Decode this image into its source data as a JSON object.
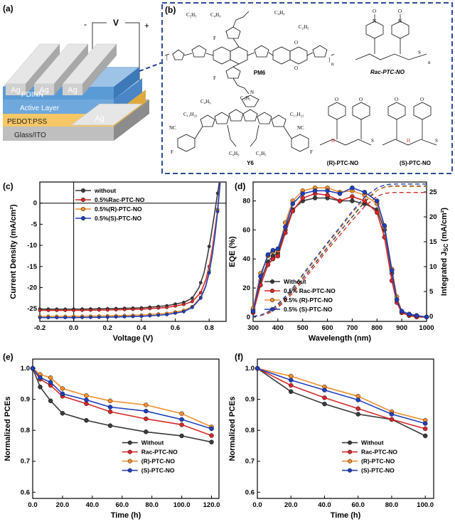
{
  "panel_labels": {
    "a": "(a)",
    "b": "(b)",
    "c": "(c)",
    "d": "(d)",
    "e": "(e)",
    "f": "(f)"
  },
  "device": {
    "voltage_label": "V",
    "minus": "-",
    "plus": "+",
    "electrode": "Ag",
    "layers": [
      "PDINN",
      "Active Layer",
      "PEDOT:PSS",
      "Glass/ITO"
    ],
    "colors": {
      "pdinn": "#5b9bd5",
      "active": "#6fa8dc",
      "pedot": "#f6c667",
      "glass": "#bfbfbf",
      "ag": "#d9d9d9"
    }
  },
  "structures": {
    "pm6": "PM6",
    "y6": "Y6",
    "rac": "Rac-PTC-NO",
    "r": "(R)-PTC-NO",
    "s": "(S)-PTC-NO",
    "atoms": {
      "c2h5": "C₂H₅",
      "c4h9": "C₄H₉",
      "c11h23": "C₁₁H₂₃",
      "s": "S",
      "f": "F",
      "o": "O",
      "n": "N",
      "cn": "NC",
      "h": "H",
      "sub_n": "n"
    }
  },
  "series_colors": {
    "without": "#3a3a3a",
    "rac": "#d62728",
    "r": "#f28e2b",
    "s": "#1f3fbf"
  },
  "chart_data": [
    {
      "id": "c",
      "type": "line",
      "xlabel": "Voltage (V)",
      "ylabel": "Current Density (mA/cm²)",
      "xlim": [
        -0.2,
        0.9
      ],
      "ylim": [
        -28,
        5
      ],
      "xticks": [
        -0.2,
        0.0,
        0.2,
        0.4,
        0.6,
        0.8
      ],
      "yticks": [
        -25,
        -20,
        -15,
        -10,
        -5,
        0
      ],
      "legend": [
        "without",
        "0.5%Rac-PTC-NO",
        "0.5%(R)-PTC-NO",
        "0.5%(S)-PTC-NO"
      ],
      "legend_position": "top-left",
      "series": [
        {
          "key": "without",
          "x": [
            -0.2,
            0,
            0.2,
            0.4,
            0.55,
            0.65,
            0.7,
            0.74,
            0.77,
            0.79,
            0.81,
            0.83,
            0.845,
            0.86
          ],
          "y": [
            -25.1,
            -25.1,
            -25.0,
            -24.8,
            -24.3,
            -23.5,
            -22.5,
            -20,
            -16.5,
            -12.5,
            -8,
            -3,
            1,
            5
          ]
        },
        {
          "key": "rac",
          "x": [
            -0.2,
            0,
            0.2,
            0.4,
            0.55,
            0.65,
            0.7,
            0.75,
            0.78,
            0.8,
            0.82,
            0.835,
            0.85,
            0.865
          ],
          "y": [
            -25.4,
            -25.4,
            -25.3,
            -25.1,
            -24.7,
            -24.0,
            -23.3,
            -21.2,
            -18.2,
            -15,
            -10.5,
            -6,
            -1.5,
            5
          ]
        },
        {
          "key": "r",
          "x": [
            -0.2,
            0,
            0.2,
            0.4,
            0.55,
            0.65,
            0.7,
            0.75,
            0.78,
            0.8,
            0.82,
            0.835,
            0.85,
            0.865
          ],
          "y": [
            -26.8,
            -26.8,
            -26.7,
            -26.5,
            -26.1,
            -25.4,
            -24.5,
            -22.3,
            -19.5,
            -16,
            -11.5,
            -7,
            -1.5,
            5
          ]
        },
        {
          "key": "s",
          "x": [
            -0.2,
            0,
            0.2,
            0.4,
            0.55,
            0.65,
            0.7,
            0.75,
            0.78,
            0.8,
            0.82,
            0.835,
            0.85,
            0.865
          ],
          "y": [
            -27.1,
            -27.1,
            -27.0,
            -26.8,
            -26.4,
            -25.7,
            -24.7,
            -22.5,
            -19.7,
            -16.5,
            -12,
            -7.5,
            -2,
            5
          ]
        }
      ]
    },
    {
      "id": "d",
      "type": "line",
      "xlabel": "Wavelength (nm)",
      "ylabel": "EQE (%)",
      "ylabel2": "Integrated J",
      "ylabel2_sub": "SC",
      "ylabel2_unit": " (mA/cm²)",
      "xlim": [
        300,
        1000
      ],
      "ylim": [
        -3,
        93
      ],
      "y2lim": [
        -1,
        27
      ],
      "xticks": [
        300,
        400,
        500,
        600,
        700,
        800,
        900,
        1000
      ],
      "yticks": [
        0,
        20,
        40,
        60,
        80
      ],
      "y2ticks": [
        0,
        5,
        10,
        15,
        20,
        25
      ],
      "legend": [
        "Without",
        "0.5% Rac-PTC-NO",
        "0.5% (R)-PTC-NO",
        "0.5% (S)-PTC-NO"
      ],
      "legend_position": "bottom-left",
      "series": [
        {
          "key": "without",
          "x": [
            300,
            330,
            360,
            380,
            400,
            430,
            460,
            500,
            550,
            600,
            650,
            700,
            750,
            800,
            830,
            860,
            880,
            900,
            930,
            960,
            1000
          ],
          "y": [
            5,
            25,
            38,
            42,
            44,
            60,
            74,
            80,
            82,
            82,
            80,
            80,
            78,
            74,
            60,
            30,
            12,
            3,
            1,
            1,
            0
          ],
          "jsc": [
            0,
            0.2,
            0.7,
            1.3,
            2.1,
            3.5,
            5.1,
            7.6,
            10.7,
            13.9,
            17,
            20,
            23,
            25.3,
            26,
            26.2,
            26.2,
            26.2,
            26.2,
            26.2,
            26.2
          ]
        },
        {
          "key": "rac",
          "x": [
            300,
            330,
            360,
            380,
            400,
            430,
            460,
            500,
            550,
            600,
            650,
            700,
            750,
            800,
            830,
            860,
            880,
            900,
            930,
            960,
            1000
          ],
          "y": [
            3,
            22,
            36,
            40,
            42,
            58,
            73,
            82,
            85,
            84,
            80,
            83,
            80,
            72,
            55,
            25,
            10,
            3,
            1,
            0,
            0
          ],
          "jsc": [
            0,
            0.15,
            0.6,
            1.1,
            1.8,
            3.1,
            4.7,
            7.1,
            10.2,
            13.4,
            16.3,
            19.3,
            22.1,
            24.1,
            24.7,
            24.9,
            24.9,
            24.9,
            24.9,
            24.9,
            24.9
          ]
        },
        {
          "key": "r",
          "x": [
            300,
            330,
            360,
            380,
            400,
            430,
            460,
            500,
            550,
            600,
            650,
            700,
            750,
            800,
            830,
            860,
            880,
            900,
            930,
            960,
            1000
          ],
          "y": [
            6,
            30,
            42,
            45,
            46,
            65,
            80,
            87,
            89,
            89,
            86,
            87,
            84,
            78,
            62,
            33,
            14,
            4,
            2,
            1,
            0
          ],
          "jsc": [
            0,
            0.2,
            0.8,
            1.4,
            2.3,
            3.8,
            5.4,
            8.1,
            11.3,
            14.5,
            17.6,
            20.8,
            23.6,
            25.3,
            25.9,
            26.1,
            26.1,
            26.1,
            26.1,
            26.1,
            26.1
          ]
        },
        {
          "key": "s",
          "x": [
            300,
            330,
            360,
            380,
            400,
            430,
            460,
            500,
            550,
            600,
            650,
            700,
            750,
            800,
            830,
            860,
            880,
            900,
            930,
            960,
            1000
          ],
          "y": [
            4,
            28,
            43,
            46,
            47,
            62,
            78,
            85,
            87,
            87,
            85,
            89,
            86,
            80,
            63,
            32,
            12,
            4,
            2,
            1,
            0
          ],
          "jsc": [
            0,
            0.25,
            0.9,
            1.6,
            2.5,
            4,
            5.7,
            8.4,
            11.6,
            14.8,
            17.9,
            21.1,
            24,
            25.8,
            26.4,
            26.6,
            26.6,
            26.6,
            26.6,
            26.6,
            26.6
          ]
        }
      ]
    },
    {
      "id": "e",
      "type": "line",
      "xlabel": "Time (h)",
      "ylabel": "Normalized PCEs",
      "xlim": [
        0,
        125
      ],
      "ylim": [
        0.58,
        1.03
      ],
      "xticks": [
        0,
        20,
        40,
        60,
        80,
        100,
        120
      ],
      "yticks": [
        0.6,
        0.7,
        0.8,
        0.9,
        1.0
      ],
      "legend": [
        "Without",
        "Rac-PTC-NO",
        "(R)-PTC-NO",
        "(S)-PTC-NO"
      ],
      "legend_position": "bottom-right",
      "series": [
        {
          "key": "without",
          "x": [
            0,
            5,
            12,
            20,
            36,
            52,
            76,
            100,
            120
          ],
          "y": [
            1.0,
            0.94,
            0.895,
            0.855,
            0.832,
            0.815,
            0.795,
            0.782,
            0.762
          ]
        },
        {
          "key": "rac",
          "x": [
            0,
            5,
            12,
            20,
            36,
            52,
            76,
            100,
            120
          ],
          "y": [
            1.0,
            0.965,
            0.945,
            0.91,
            0.886,
            0.86,
            0.837,
            0.818,
            0.783
          ]
        },
        {
          "key": "r",
          "x": [
            0,
            5,
            12,
            20,
            36,
            52,
            76,
            100,
            120
          ],
          "y": [
            1.0,
            0.98,
            0.97,
            0.935,
            0.912,
            0.895,
            0.882,
            0.854,
            0.811
          ]
        },
        {
          "key": "s",
          "x": [
            0,
            5,
            12,
            20,
            36,
            52,
            76,
            100,
            120
          ],
          "y": [
            1.0,
            0.97,
            0.955,
            0.918,
            0.898,
            0.875,
            0.862,
            0.835,
            0.805
          ]
        }
      ]
    },
    {
      "id": "f",
      "type": "line",
      "xlabel": "Time (h)",
      "ylabel": "Normalized PCEs",
      "xlim": [
        0,
        105
      ],
      "ylim": [
        0.58,
        1.03
      ],
      "xticks": [
        0,
        20,
        40,
        60,
        80,
        100
      ],
      "yticks": [
        0.6,
        0.7,
        0.8,
        0.9,
        1.0
      ],
      "legend": [
        "Without",
        "Rac-PTC-NO",
        "(R)-PTC-NO",
        "(S)-PTC-NO"
      ],
      "legend_position": "bottom-right",
      "series": [
        {
          "key": "without",
          "x": [
            0,
            20,
            40,
            60,
            80,
            100
          ],
          "y": [
            1.0,
            0.925,
            0.885,
            0.852,
            0.835,
            0.782
          ]
        },
        {
          "key": "rac",
          "x": [
            0,
            20,
            40,
            60,
            80,
            100
          ],
          "y": [
            1.0,
            0.945,
            0.905,
            0.87,
            0.835,
            0.805
          ]
        },
        {
          "key": "r",
          "x": [
            0,
            20,
            40,
            60,
            80,
            100
          ],
          "y": [
            1.0,
            0.975,
            0.94,
            0.91,
            0.86,
            0.832
          ]
        },
        {
          "key": "s",
          "x": [
            0,
            20,
            40,
            60,
            80,
            100
          ],
          "y": [
            1.0,
            0.962,
            0.93,
            0.898,
            0.852,
            0.822
          ]
        }
      ]
    }
  ]
}
